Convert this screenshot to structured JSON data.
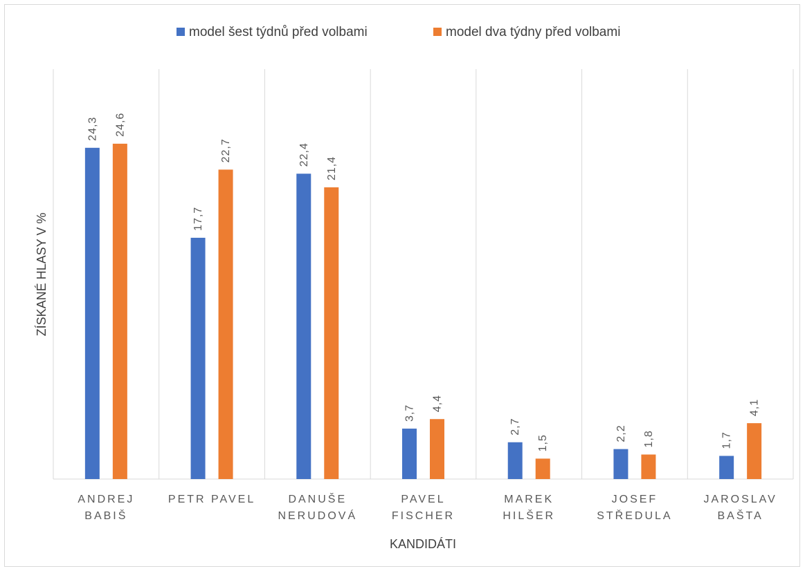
{
  "chart_data": {
    "type": "bar",
    "title": "",
    "xlabel": "KANDIDÁTI",
    "ylabel": "ZÍSKANÉ HLASY V %",
    "ylim": [
      0,
      25
    ],
    "grid": "vertical category separators",
    "legend_position": "top",
    "categories": [
      [
        "ANDREJ",
        "BABIŠ"
      ],
      [
        "PETR PAVEL"
      ],
      [
        "DANUŠE",
        "NERUDOVÁ"
      ],
      [
        "PAVEL",
        "FISCHER"
      ],
      [
        "MAREK",
        "HILŠER"
      ],
      [
        "JOSEF",
        "STŘEDULA"
      ],
      [
        "JAROSLAV",
        "BAŠTA"
      ]
    ],
    "series": [
      {
        "name": "model šest týdnů před volbami",
        "color": "#4472c4",
        "values": [
          24.3,
          17.7,
          22.4,
          3.7,
          2.7,
          2.2,
          1.7
        ],
        "labels": [
          "24,3",
          "17,7",
          "22,4",
          "3,7",
          "2,7",
          "2,2",
          "1,7"
        ]
      },
      {
        "name": "model dva týdny před volbami",
        "color": "#ed7d31",
        "values": [
          24.6,
          22.7,
          21.4,
          4.4,
          1.5,
          1.8,
          4.1
        ],
        "labels": [
          "24,6",
          "22,7",
          "21,4",
          "4,4",
          "1,5",
          "1,8",
          "4,1"
        ]
      }
    ]
  }
}
